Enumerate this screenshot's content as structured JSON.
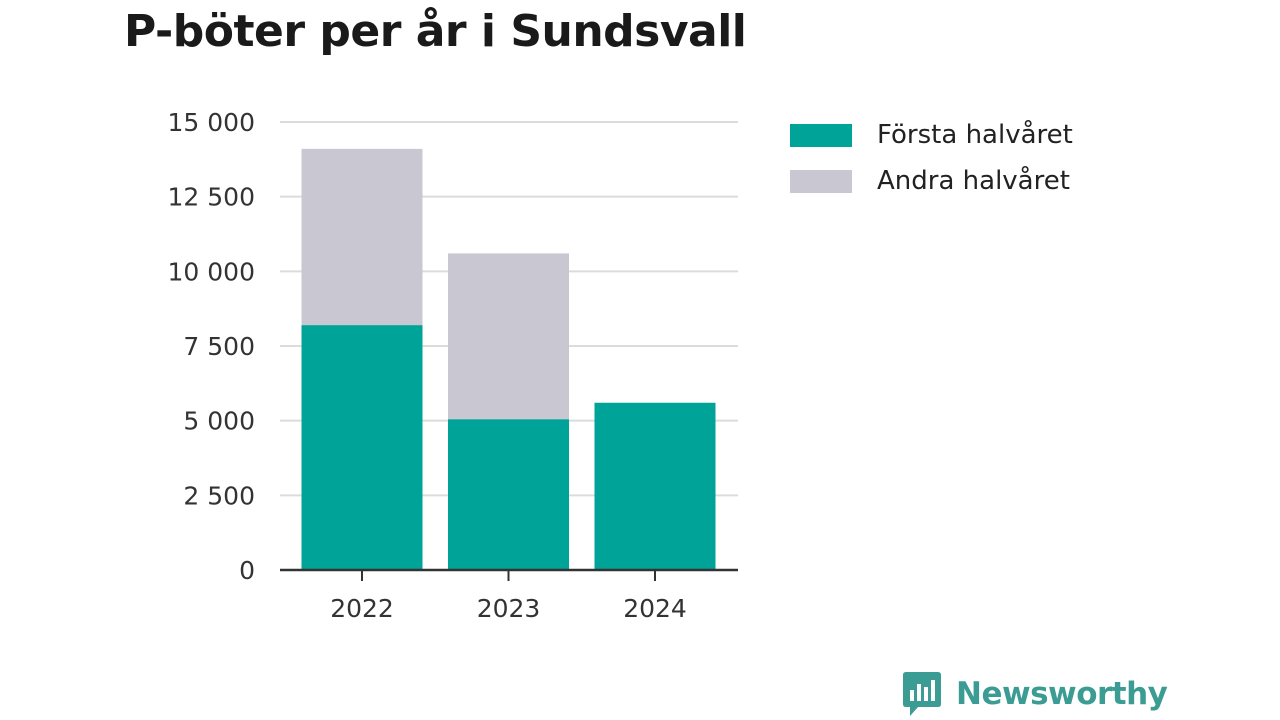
{
  "title": "P-böter per år i Sundsvall",
  "chart_data": {
    "type": "bar",
    "stacked": true,
    "title": "P-böter per år i Sundsvall",
    "xlabel": "",
    "ylabel": "",
    "categories": [
      "2022",
      "2023",
      "2024"
    ],
    "series": [
      {
        "name": "Första halvåret",
        "values": [
          8200,
          5050,
          5600
        ],
        "color": "#00a398"
      },
      {
        "name": "Andra halvåret",
        "values": [
          5900,
          5550,
          0
        ],
        "color": "#c8c7d2"
      }
    ],
    "ylim": [
      0,
      15000
    ],
    "yticks": [
      0,
      2500,
      5000,
      7500,
      10000,
      12500,
      15000
    ],
    "ytick_labels": [
      "0",
      "2 500",
      "5 000",
      "7 500",
      "10 000",
      "12 500",
      "15 000"
    ],
    "grid": true,
    "legend_position": "right"
  },
  "brand": {
    "name": "Newsworthy",
    "icon": "bar-chart-speech-bubble-icon",
    "color": "#3a9c92"
  }
}
